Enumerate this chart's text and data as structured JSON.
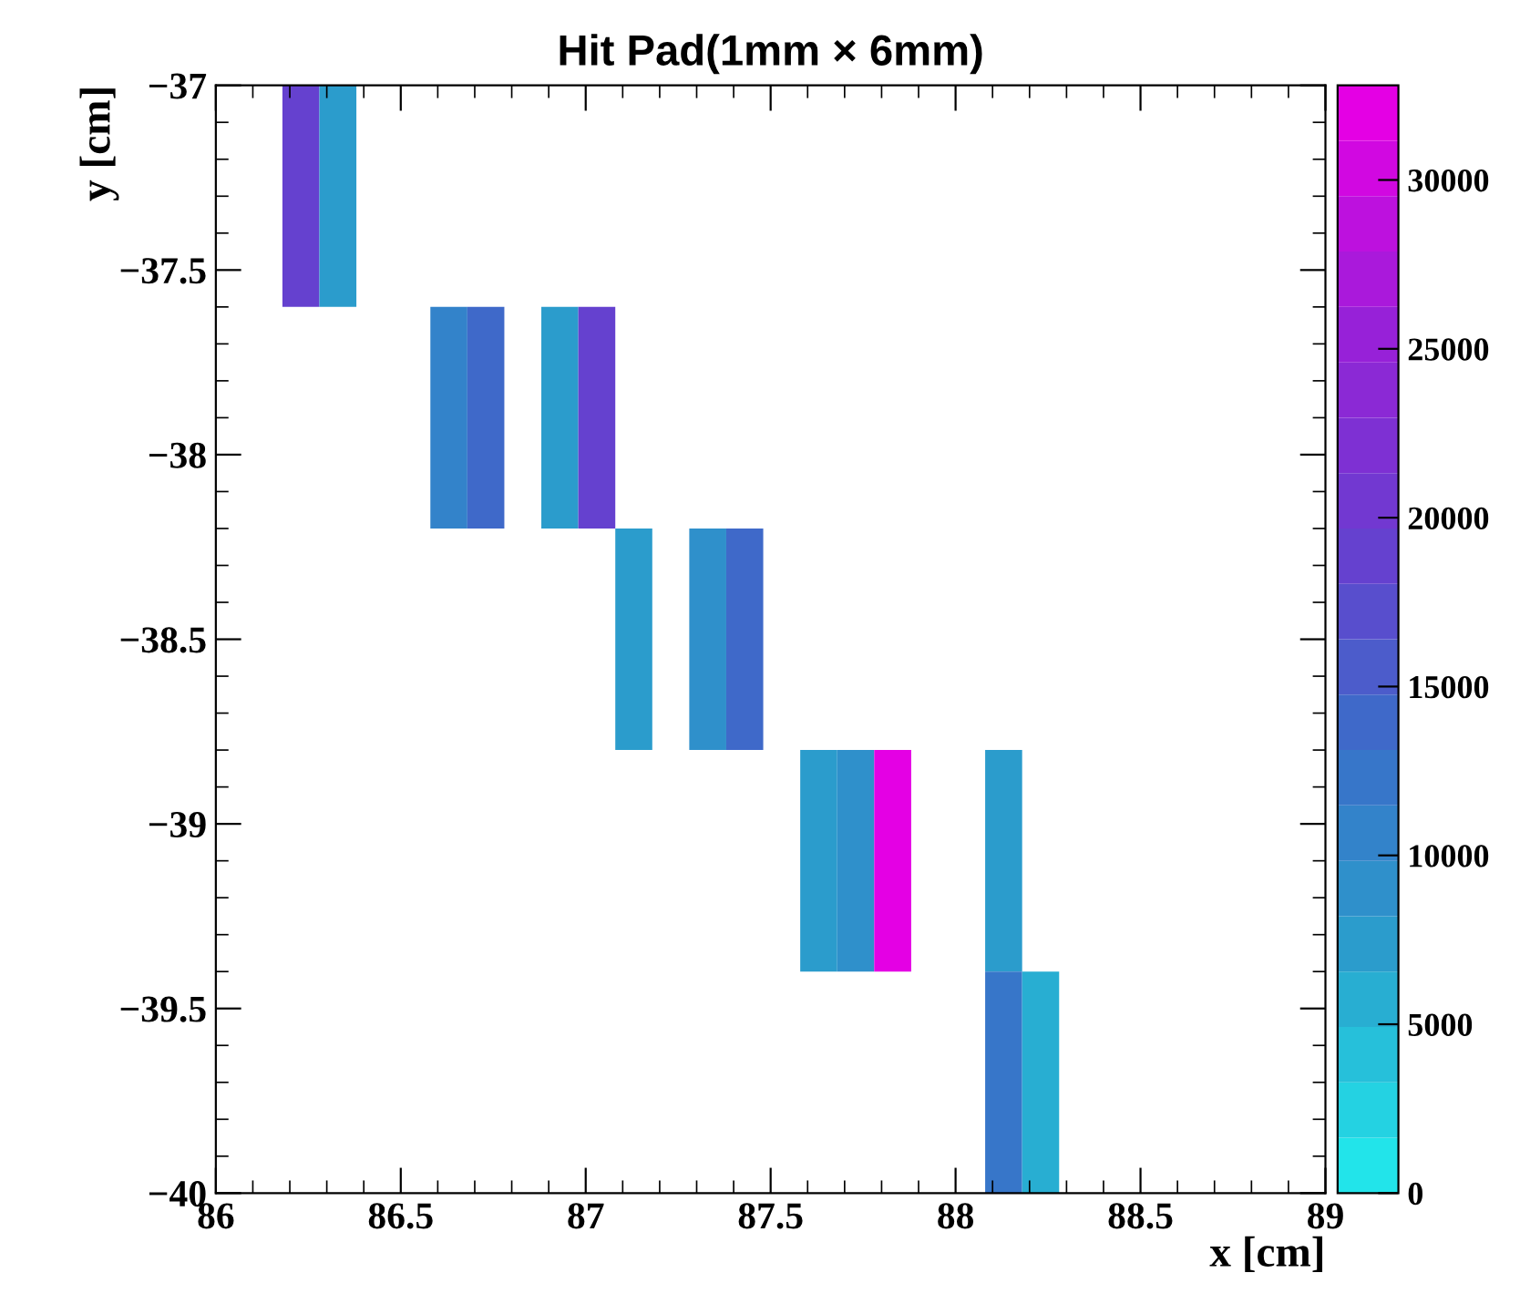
{
  "chart_data": {
    "type": "heatmap",
    "title": "Hit Pad(1mm × 6mm)",
    "xlabel": "x [cm]",
    "ylabel": "y [cm]",
    "x": [
      86.23,
      86.33,
      86.43,
      86.53,
      86.63,
      86.73,
      86.83,
      86.93,
      87.03,
      87.13,
      87.23,
      87.33,
      87.43,
      87.53,
      87.63,
      87.73,
      87.83,
      87.93,
      88.03,
      88.13,
      88.23
    ],
    "y": [
      -37.3,
      -37.9,
      -38.5,
      -39.1,
      -39.7
    ],
    "cells": [
      [
        19000,
        7500,
        null,
        null,
        null,
        null,
        null,
        null,
        null,
        null,
        null,
        null,
        null,
        null,
        null,
        null,
        null,
        null,
        null,
        null,
        null
      ],
      [
        null,
        null,
        null,
        null,
        10000,
        13500,
        null,
        8000,
        19000,
        null,
        null,
        null,
        null,
        null,
        null,
        null,
        null,
        null,
        null,
        null,
        null
      ],
      [
        null,
        null,
        null,
        null,
        null,
        null,
        null,
        null,
        null,
        7500,
        null,
        9000,
        14000,
        null,
        null,
        null,
        null,
        null,
        null,
        null,
        null
      ],
      [
        null,
        null,
        null,
        null,
        null,
        null,
        null,
        null,
        null,
        null,
        null,
        null,
        null,
        null,
        7500,
        9000,
        32000,
        null,
        null,
        7500,
        null
      ],
      [
        null,
        null,
        null,
        null,
        null,
        null,
        null,
        null,
        null,
        null,
        null,
        null,
        null,
        null,
        null,
        null,
        null,
        null,
        null,
        13000,
        6500
      ]
    ],
    "xlim": [
      86,
      89
    ],
    "ylim": [
      -40,
      -37
    ],
    "xticks": [
      86,
      86.5,
      87,
      87.5,
      88,
      88.5,
      89
    ],
    "yticks": [
      {
        "value": -40,
        "label": "−40"
      },
      {
        "value": -39.5,
        "label": "−39.5"
      },
      {
        "value": -39,
        "label": "−39"
      },
      {
        "value": -38.5,
        "label": "−38.5"
      },
      {
        "value": -38,
        "label": "−38"
      },
      {
        "value": -37.5,
        "label": "−37.5"
      },
      {
        "value": -37,
        "label": "−37"
      }
    ],
    "clim": [
      0,
      32800
    ],
    "cticks": [
      0,
      5000,
      10000,
      15000,
      20000,
      25000,
      30000
    ],
    "grid": false
  }
}
